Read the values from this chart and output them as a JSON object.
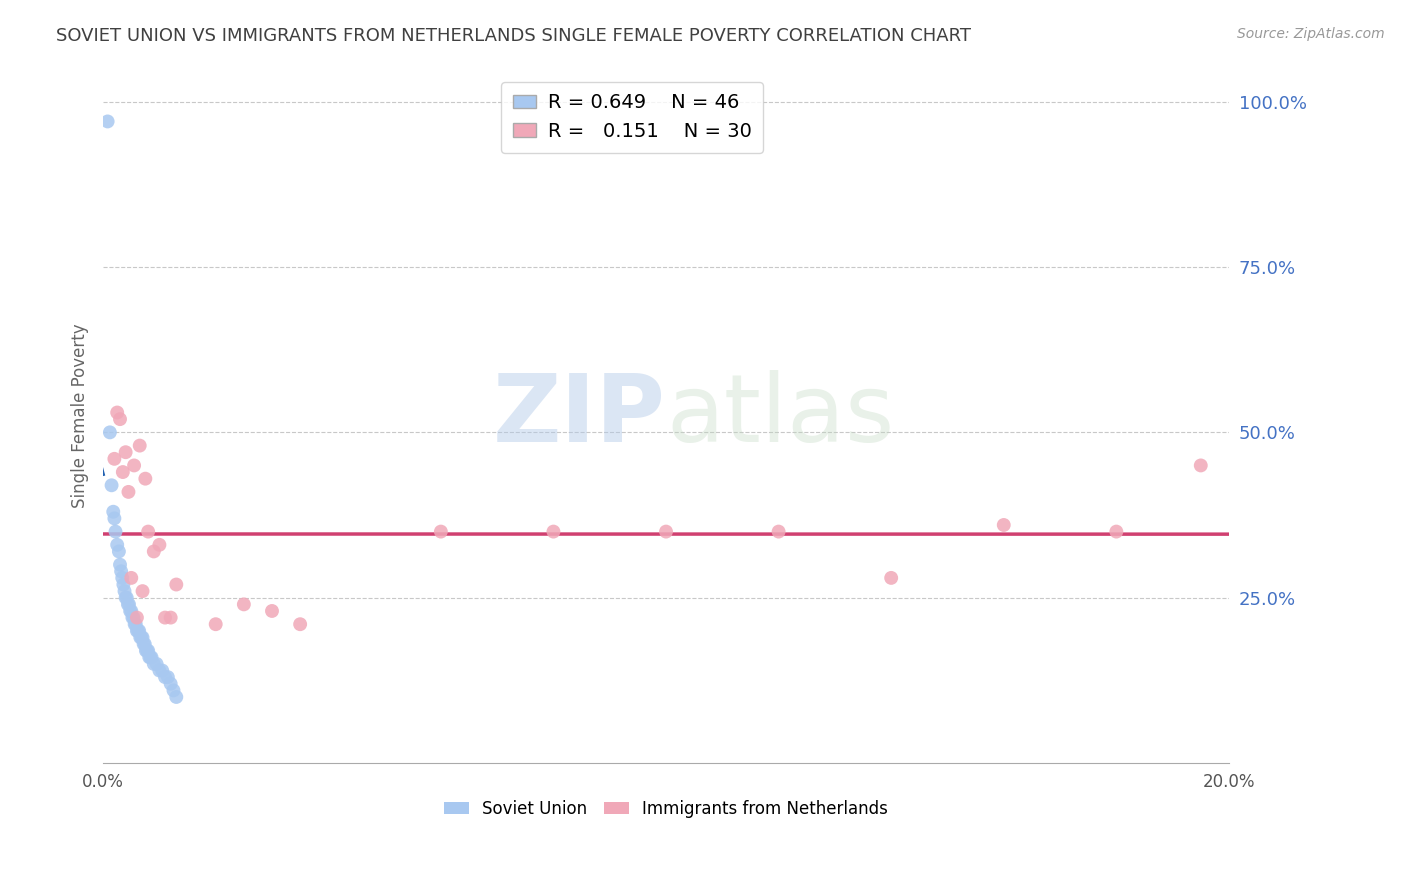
{
  "title": "SOVIET UNION VS IMMIGRANTS FROM NETHERLANDS SINGLE FEMALE POVERTY CORRELATION CHART",
  "source": "Source: ZipAtlas.com",
  "ylabel": "Single Female Poverty",
  "watermark_zip": "ZIP",
  "watermark_atlas": "atlas",
  "xlim": [
    0.0,
    0.2
  ],
  "ylim": [
    0.0,
    1.05
  ],
  "legend1_label": "Soviet Union",
  "legend2_label": "Immigrants from Netherlands",
  "R1": 0.649,
  "N1": 46,
  "R2": 0.151,
  "N2": 30,
  "blue_color": "#A8C8F0",
  "pink_color": "#F0A8B8",
  "blue_line_color": "#2060B0",
  "pink_line_color": "#D04070",
  "background_color": "#FFFFFF",
  "grid_color": "#C8C8C8",
  "title_color": "#404040",
  "right_label_color": "#4472C4",
  "soviet_x": [
    0.0008,
    0.0012,
    0.0015,
    0.0018,
    0.002,
    0.0022,
    0.0025,
    0.0028,
    0.003,
    0.0032,
    0.0034,
    0.0036,
    0.0038,
    0.004,
    0.0042,
    0.0044,
    0.0046,
    0.0048,
    0.005,
    0.0052,
    0.0054,
    0.0056,
    0.0058,
    0.006,
    0.0062,
    0.0064,
    0.0066,
    0.0068,
    0.007,
    0.0072,
    0.0074,
    0.0076,
    0.0078,
    0.008,
    0.0082,
    0.0084,
    0.0086,
    0.009,
    0.0095,
    0.01,
    0.0105,
    0.011,
    0.0115,
    0.012,
    0.0125,
    0.013
  ],
  "soviet_y": [
    0.97,
    0.5,
    0.42,
    0.38,
    0.37,
    0.35,
    0.33,
    0.32,
    0.3,
    0.29,
    0.28,
    0.27,
    0.26,
    0.25,
    0.25,
    0.24,
    0.24,
    0.23,
    0.23,
    0.22,
    0.22,
    0.21,
    0.21,
    0.2,
    0.2,
    0.2,
    0.19,
    0.19,
    0.19,
    0.18,
    0.18,
    0.17,
    0.17,
    0.17,
    0.16,
    0.16,
    0.16,
    0.15,
    0.15,
    0.14,
    0.14,
    0.13,
    0.13,
    0.12,
    0.11,
    0.1
  ],
  "netherlands_x": [
    0.002,
    0.0025,
    0.003,
    0.0035,
    0.004,
    0.0045,
    0.005,
    0.0055,
    0.006,
    0.0065,
    0.007,
    0.0075,
    0.008,
    0.009,
    0.01,
    0.011,
    0.012,
    0.013,
    0.02,
    0.025,
    0.03,
    0.035,
    0.06,
    0.08,
    0.1,
    0.12,
    0.14,
    0.16,
    0.18,
    0.195
  ],
  "netherlands_y": [
    0.46,
    0.53,
    0.52,
    0.44,
    0.47,
    0.41,
    0.28,
    0.45,
    0.22,
    0.48,
    0.26,
    0.43,
    0.35,
    0.32,
    0.33,
    0.22,
    0.22,
    0.27,
    0.21,
    0.24,
    0.23,
    0.21,
    0.35,
    0.35,
    0.35,
    0.35,
    0.28,
    0.36,
    0.35,
    0.45
  ]
}
